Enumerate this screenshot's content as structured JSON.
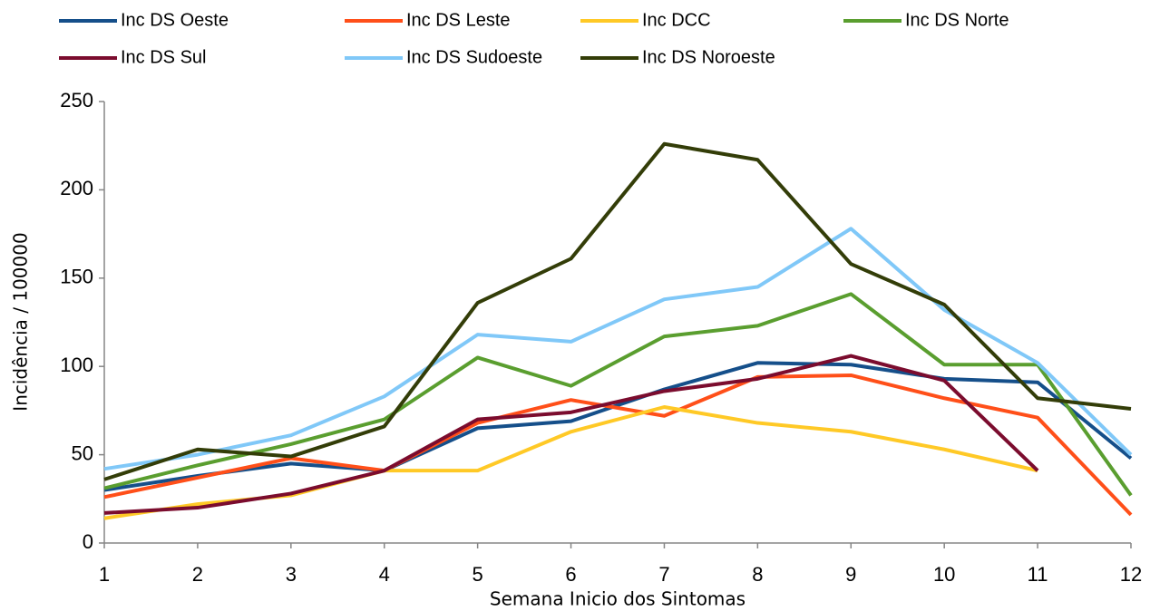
{
  "chart_data": {
    "type": "line",
    "x_label": "Semana Inicio dos Sintomas",
    "y_label": "Incidência / 100000",
    "x": [
      1,
      2,
      3,
      4,
      5,
      6,
      7,
      8,
      9,
      10,
      11,
      12
    ],
    "xlim": [
      1,
      12
    ],
    "xticks": [
      1,
      2,
      3,
      4,
      5,
      6,
      7,
      8,
      9,
      10,
      11,
      12
    ],
    "ylim": [
      0,
      250
    ],
    "yticks": [
      0,
      50,
      100,
      150,
      200,
      250
    ],
    "grid": false,
    "legend": "top",
    "series": [
      {
        "name": "Inc DS Oeste",
        "color": "#154f8a",
        "values": [
          30,
          38,
          45,
          41,
          65,
          69,
          87,
          102,
          101,
          93,
          91,
          48
        ]
      },
      {
        "name": "Inc DS Leste",
        "color": "#ff4f19",
        "values": [
          26,
          37,
          48,
          41,
          68,
          81,
          72,
          94,
          95,
          82,
          71,
          16
        ]
      },
      {
        "name": "Inc DCC",
        "color": "#ffc926",
        "values": [
          14,
          22,
          27,
          41,
          41,
          63,
          77,
          68,
          63,
          53,
          41,
          null
        ]
      },
      {
        "name": "Inc DS Norte",
        "color": "#5a9e2f",
        "values": [
          31,
          44,
          56,
          70,
          105,
          89,
          117,
          123,
          141,
          101,
          101,
          27
        ]
      },
      {
        "name": "Inc DS Sul",
        "color": "#7b0c2e",
        "values": [
          17,
          20,
          28,
          41,
          70,
          74,
          86,
          93,
          106,
          92,
          41,
          null
        ]
      },
      {
        "name": "Inc DS Sudoeste",
        "color": "#80c8f8",
        "values": [
          42,
          50,
          61,
          83,
          118,
          114,
          138,
          145,
          178,
          132,
          102,
          50
        ]
      },
      {
        "name": "Inc DS Noroeste",
        "color": "#333d08",
        "values": [
          36,
          53,
          49,
          66,
          136,
          161,
          226,
          217,
          158,
          135,
          82,
          76
        ]
      }
    ]
  }
}
